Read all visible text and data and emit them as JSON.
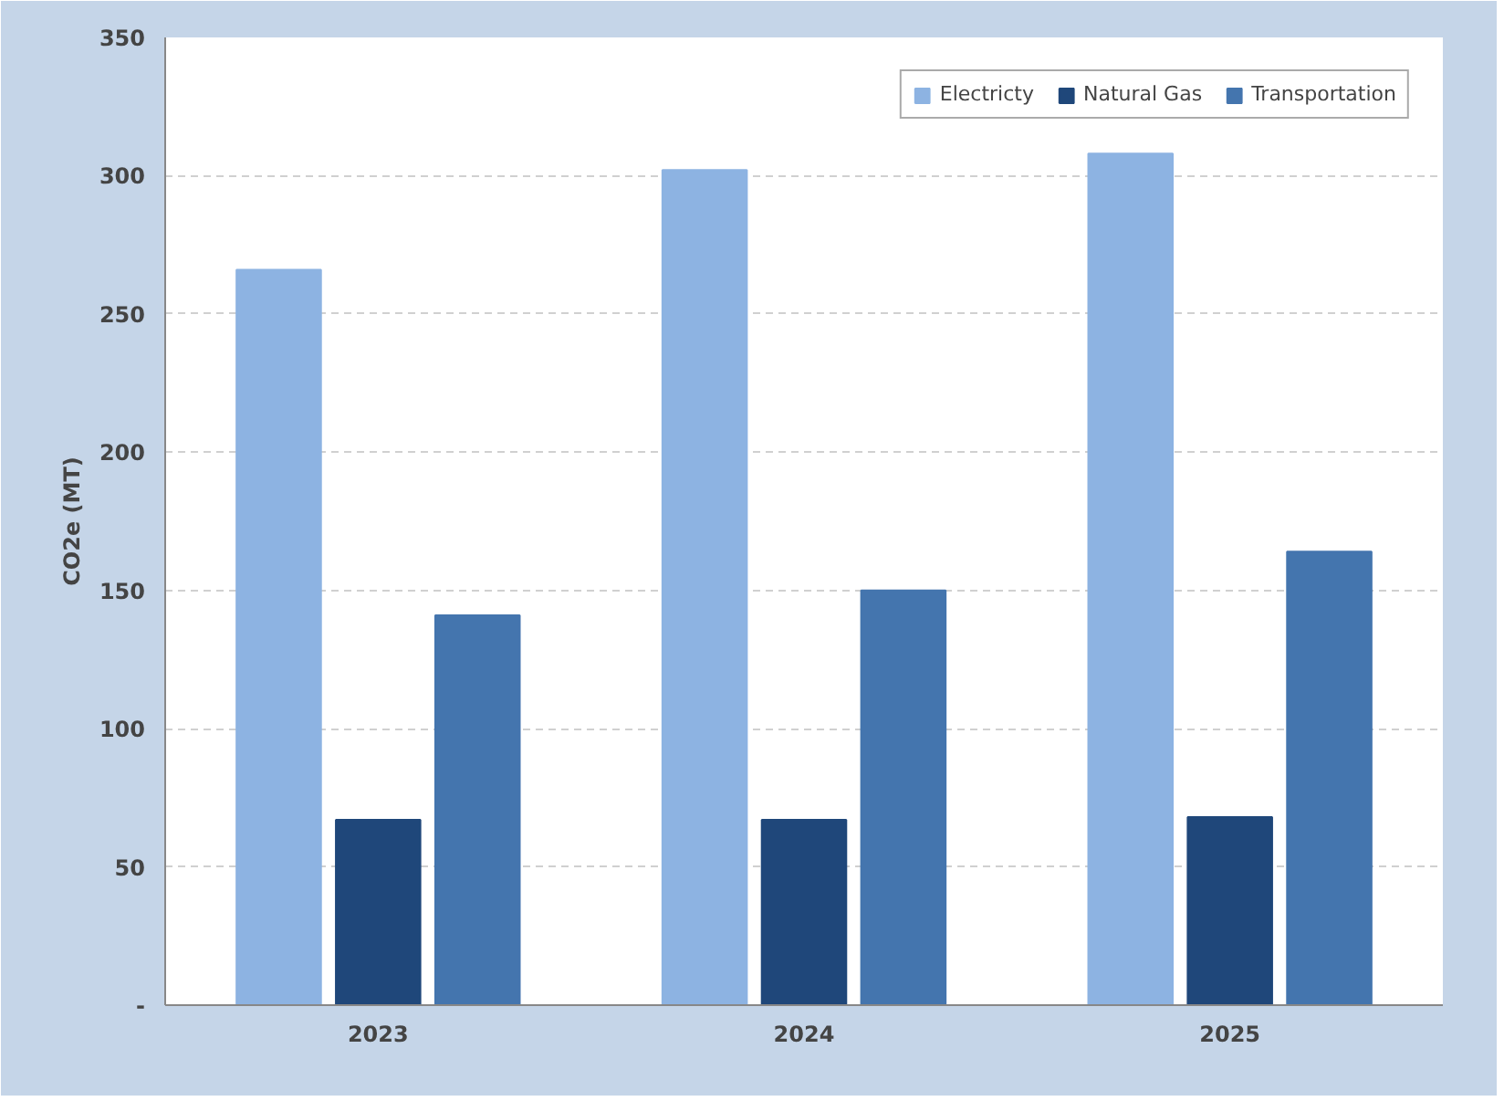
{
  "chart_data": {
    "type": "bar",
    "ylabel": "CO2e (MT)",
    "categories": [
      "2023",
      "2024",
      "2025"
    ],
    "series": [
      {
        "name": "Electricty",
        "color": "#8db3e2",
        "values": [
          266,
          302,
          308
        ]
      },
      {
        "name": "Natural Gas",
        "color": "#1f477a",
        "values": [
          67,
          67,
          68
        ]
      },
      {
        "name": "Transportation",
        "color": "#4475ae",
        "values": [
          141,
          150,
          164
        ]
      }
    ],
    "ylim": [
      0,
      350
    ],
    "yticks": [
      {
        "value": 0,
        "label": "-"
      },
      50,
      100,
      150,
      200,
      250,
      300,
      350
    ],
    "grid": "y",
    "legend": "top right"
  }
}
